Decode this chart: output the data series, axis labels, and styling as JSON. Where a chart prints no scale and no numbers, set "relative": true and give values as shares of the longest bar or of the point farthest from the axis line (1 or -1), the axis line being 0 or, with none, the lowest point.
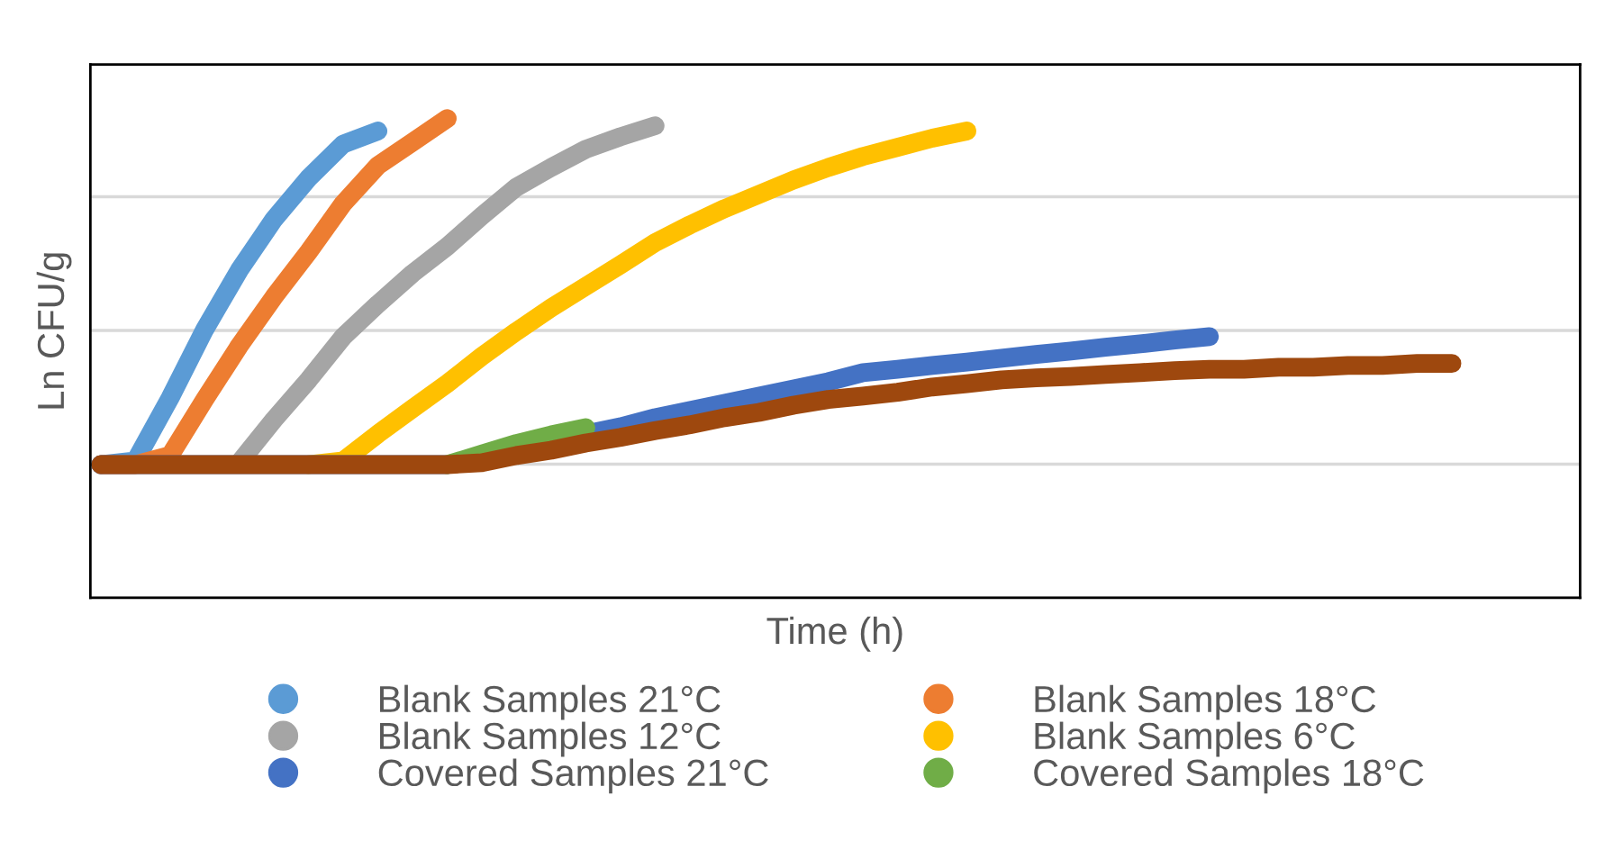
{
  "chart_data": {
    "type": "line",
    "xlabel": "Time (h)",
    "ylabel": "Ln CFU/g",
    "relative": true,
    "grid": "y",
    "legend": "bottom",
    "marker": "none",
    "line_style": "solid",
    "categories": [
      null,
      null,
      null,
      null,
      null,
      null,
      null,
      null,
      null,
      null,
      null,
      null,
      null,
      null,
      null,
      null,
      null,
      null,
      null,
      null,
      null,
      null,
      null,
      null,
      null,
      null,
      null,
      null,
      null,
      null,
      null,
      null,
      null,
      null,
      null,
      null,
      null,
      null,
      null,
      null,
      null,
      null,
      null
    ],
    "series": [
      {
        "name": "Blank Samples 21°C",
        "color": "#5b9bd5",
        "values": [
          0.278,
          0.286,
          0.417,
          0.56,
          0.684,
          0.79,
          0.876,
          0.947,
          0.974,
          null,
          null,
          null,
          null,
          null,
          null,
          null,
          null,
          null,
          null,
          null,
          null,
          null,
          null,
          null,
          null,
          null,
          null,
          null,
          null,
          null,
          null,
          null,
          null,
          null,
          null,
          null,
          null,
          null,
          null,
          null,
          null,
          null,
          null
        ]
      },
      {
        "name": "Blank Samples 18°C",
        "color": "#ed7d31",
        "values": [
          0.278,
          0.278,
          0.297,
          0.414,
          0.526,
          0.628,
          0.722,
          0.823,
          0.902,
          0.951,
          1.0,
          null,
          null,
          null,
          null,
          null,
          null,
          null,
          null,
          null,
          null,
          null,
          null,
          null,
          null,
          null,
          null,
          null,
          null,
          null,
          null,
          null,
          null,
          null,
          null,
          null,
          null,
          null,
          null,
          null,
          null,
          null,
          null
        ]
      },
      {
        "name": "Blank Samples 12°C",
        "color": "#a5a5a5",
        "values": [
          null,
          null,
          null,
          null,
          0.282,
          0.372,
          0.455,
          0.545,
          0.613,
          0.677,
          0.733,
          0.797,
          0.857,
          0.898,
          0.936,
          0.962,
          0.985,
          null,
          null,
          null,
          null,
          null,
          null,
          null,
          null,
          null,
          null,
          null,
          null,
          null,
          null,
          null,
          null,
          null,
          null,
          null,
          null,
          null,
          null,
          null,
          null,
          null,
          null
        ]
      },
      {
        "name": "Blank Samples 6°C",
        "color": "#ffc000",
        "values": [
          null,
          null,
          null,
          null,
          null,
          null,
          0.278,
          0.286,
          0.342,
          0.395,
          0.447,
          0.504,
          0.556,
          0.605,
          0.65,
          0.695,
          0.741,
          0.778,
          0.812,
          0.842,
          0.872,
          0.898,
          0.921,
          0.94,
          0.959,
          0.974,
          null,
          null,
          null,
          null,
          null,
          null,
          null,
          null,
          null,
          null,
          null,
          null,
          null,
          null,
          null,
          null,
          null
        ]
      },
      {
        "name": "Covered Samples 21°C",
        "color": "#4472c4",
        "values": [
          0.278,
          0.278,
          0.278,
          0.278,
          0.278,
          0.278,
          0.278,
          0.278,
          0.278,
          0.278,
          0.278,
          0.293,
          0.312,
          0.327,
          0.342,
          0.357,
          0.376,
          0.391,
          0.406,
          0.421,
          0.436,
          0.451,
          0.47,
          0.477,
          0.485,
          0.492,
          0.5,
          0.508,
          0.515,
          0.523,
          0.53,
          0.538,
          0.545,
          null,
          null,
          null,
          null,
          null,
          null,
          null,
          null,
          null,
          null
        ]
      },
      {
        "name": "Covered Samples 18°C",
        "color": "#70ad47",
        "values": [
          null,
          null,
          null,
          null,
          null,
          null,
          null,
          null,
          null,
          null,
          0.278,
          0.3,
          0.322,
          0.34,
          0.355,
          null,
          null,
          null,
          null,
          null,
          null,
          null,
          null,
          null,
          null,
          null,
          null,
          null,
          null,
          null,
          null,
          null,
          null,
          null,
          null,
          null,
          null,
          null,
          null,
          null,
          null,
          null,
          null
        ]
      },
      {
        "color": "#9e480e",
        "values": [
          0.278,
          0.278,
          0.278,
          0.278,
          0.278,
          0.278,
          0.278,
          0.278,
          0.278,
          0.278,
          0.278,
          0.282,
          0.297,
          0.308,
          0.323,
          0.335,
          0.349,
          0.361,
          0.376,
          0.387,
          0.402,
          0.414,
          0.421,
          0.429,
          0.44,
          0.447,
          0.455,
          0.459,
          0.462,
          0.466,
          0.47,
          0.474,
          0.477,
          0.477,
          0.481,
          0.481,
          0.485,
          0.485,
          0.489,
          0.489,
          null,
          null,
          null
        ]
      }
    ]
  }
}
